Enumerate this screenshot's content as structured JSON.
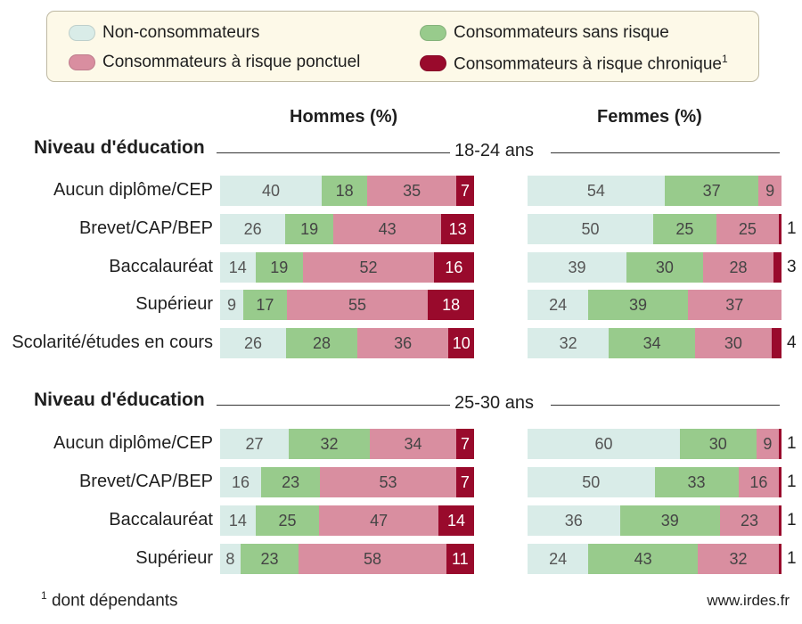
{
  "legend": {
    "items": [
      {
        "label": "Non-consommateurs",
        "sup": "",
        "color": "#d9ece8"
      },
      {
        "label": "Consommateurs sans risque",
        "sup": "",
        "color": "#98cb8c"
      },
      {
        "label": "Consommateurs à risque ponctuel",
        "sup": "",
        "color": "#d98ea0"
      },
      {
        "label": "Consommateurs à risque chronique",
        "sup": "1",
        "color": "#990a2c"
      }
    ]
  },
  "headers": {
    "hommes": "Hommes (%)",
    "femmes": "Femmes (%)"
  },
  "footnote": {
    "sup": "1",
    "text": "dont dépendants"
  },
  "source": "www.irdes.fr",
  "chart_data": {
    "type": "bar",
    "stacked": true,
    "orientation": "horizontal",
    "series_names": [
      "Non-consommateurs",
      "Consommateurs sans risque",
      "Consommateurs à risque ponctuel",
      "Consommateurs à risque chronique"
    ],
    "panels": [
      {
        "title": "Niveau d'éducation",
        "age": "18-24 ans",
        "rows": [
          {
            "label": "Aucun diplôme/CEP",
            "hommes": [
              40,
              18,
              35,
              7
            ],
            "femmes": [
              54,
              37,
              9,
              0
            ],
            "femmes_outside": ""
          },
          {
            "label": "Brevet/CAP/BEP",
            "hommes": [
              26,
              19,
              43,
              13
            ],
            "femmes": [
              50,
              25,
              25,
              1
            ],
            "femmes_outside": "1"
          },
          {
            "label": "Baccalauréat",
            "hommes": [
              14,
              19,
              52,
              16
            ],
            "femmes": [
              39,
              30,
              28,
              3
            ],
            "femmes_outside": "3"
          },
          {
            "label": "Supérieur",
            "hommes": [
              9,
              17,
              55,
              18
            ],
            "femmes": [
              24,
              39,
              37,
              0
            ],
            "femmes_outside": ""
          },
          {
            "label": "Scolarité/études en cours",
            "hommes": [
              26,
              28,
              36,
              10
            ],
            "femmes": [
              32,
              34,
              30,
              4
            ],
            "femmes_outside": "4"
          }
        ]
      },
      {
        "title": "Niveau d'éducation",
        "age": "25-30 ans",
        "rows": [
          {
            "label": "Aucun diplôme/CEP",
            "hommes": [
              27,
              32,
              34,
              7
            ],
            "femmes": [
              60,
              30,
              9,
              1
            ],
            "femmes_outside": "1"
          },
          {
            "label": "Brevet/CAP/BEP",
            "hommes": [
              16,
              23,
              53,
              7
            ],
            "femmes": [
              50,
              33,
              16,
              1
            ],
            "femmes_outside": "1"
          },
          {
            "label": "Baccalauréat",
            "hommes": [
              14,
              25,
              47,
              14
            ],
            "femmes": [
              36,
              39,
              23,
              1
            ],
            "femmes_outside": "1"
          },
          {
            "label": "Supérieur",
            "hommes": [
              8,
              23,
              58,
              11
            ],
            "femmes": [
              24,
              43,
              32,
              1
            ],
            "femmes_outside": "1"
          }
        ]
      }
    ]
  }
}
